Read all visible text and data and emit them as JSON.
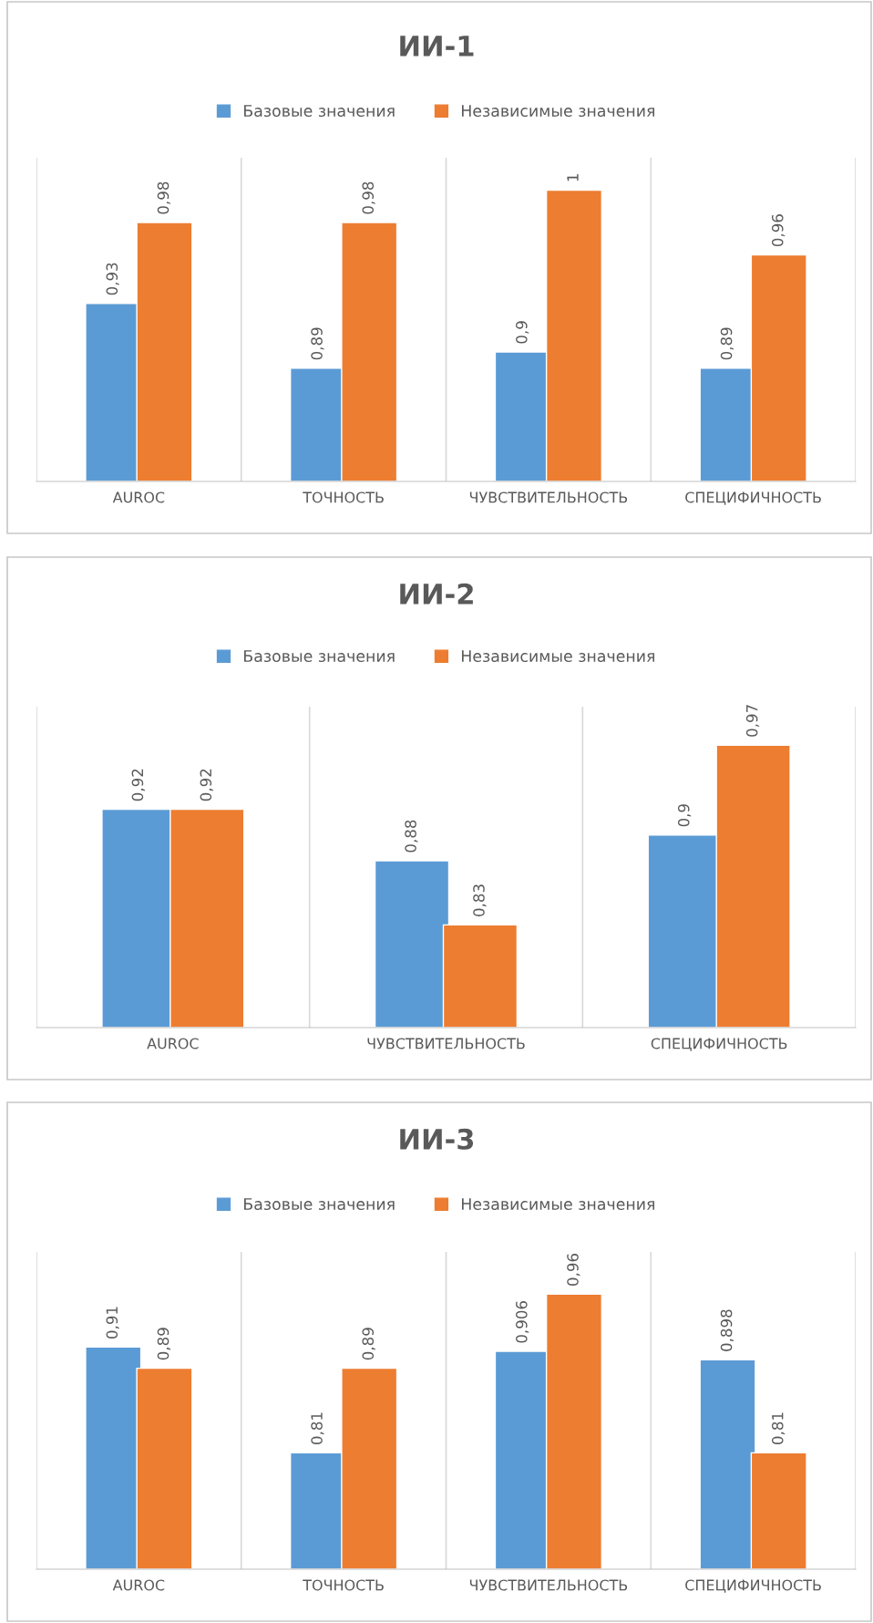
{
  "chart_data": [
    {
      "type": "bar",
      "title": "ИИ-1",
      "categories": [
        "AUROC",
        "ТОЧНОСТЬ",
        "ЧУВСТВИТЕЛЬНОСТЬ",
        "СПЕЦИФИЧНОСТЬ"
      ],
      "ylim": [
        0.82,
        1.02
      ],
      "tick_labels": "x",
      "grid": "x",
      "legend": "top",
      "series": [
        {
          "name": "Базовые значения",
          "color": "#5b9bd5",
          "values": [
            0.93,
            0.89,
            0.9,
            0.89
          ],
          "value_labels": [
            "0,93",
            "0,89",
            "0,9",
            "0,89"
          ]
        },
        {
          "name": "Независимые значения",
          "color": "#ed7d31",
          "values": [
            0.98,
            0.98,
            1,
            0.96
          ],
          "value_labels": [
            "0,98",
            "0,98",
            "1",
            "0,96"
          ]
        }
      ]
    },
    {
      "type": "bar",
      "title": "ИИ-2",
      "categories": [
        "AUROC",
        "ЧУВСТВИТЕЛЬНОСТЬ",
        "СПЕЦИФИЧНОСТЬ"
      ],
      "ylim": [
        0.75,
        1.0
      ],
      "tick_labels": "x",
      "grid": "x",
      "legend": "top",
      "series": [
        {
          "name": "Базовые значения",
          "color": "#5b9bd5",
          "values": [
            0.92,
            0.88,
            0.9
          ],
          "value_labels": [
            "0,92",
            "0,88",
            "0,9"
          ]
        },
        {
          "name": "Независимые значения",
          "color": "#ed7d31",
          "values": [
            0.92,
            0.83,
            0.97
          ],
          "value_labels": [
            "0,92",
            "0,83",
            "0,97"
          ]
        }
      ]
    },
    {
      "type": "bar",
      "title": "ИИ-3",
      "categories": [
        "AUROC",
        "ТОЧНОСТЬ",
        "ЧУВСТВИТЕЛЬНОСТЬ",
        "СПЕЦИФИЧНОСТЬ"
      ],
      "ylim": [
        0.7,
        1.0
      ],
      "tick_labels": "x",
      "grid": "x",
      "legend": "top",
      "series": [
        {
          "name": "Базовые значения",
          "color": "#5b9bd5",
          "values": [
            0.91,
            0.81,
            0.906,
            0.898
          ],
          "value_labels": [
            "0,91",
            "0,81",
            "0,906",
            "0,898"
          ]
        },
        {
          "name": "Независимые значения",
          "color": "#ed7d31",
          "values": [
            0.89,
            0.89,
            0.96,
            0.81
          ],
          "value_labels": [
            "0,89",
            "0,89",
            "0,96",
            "0,81"
          ]
        }
      ]
    }
  ]
}
